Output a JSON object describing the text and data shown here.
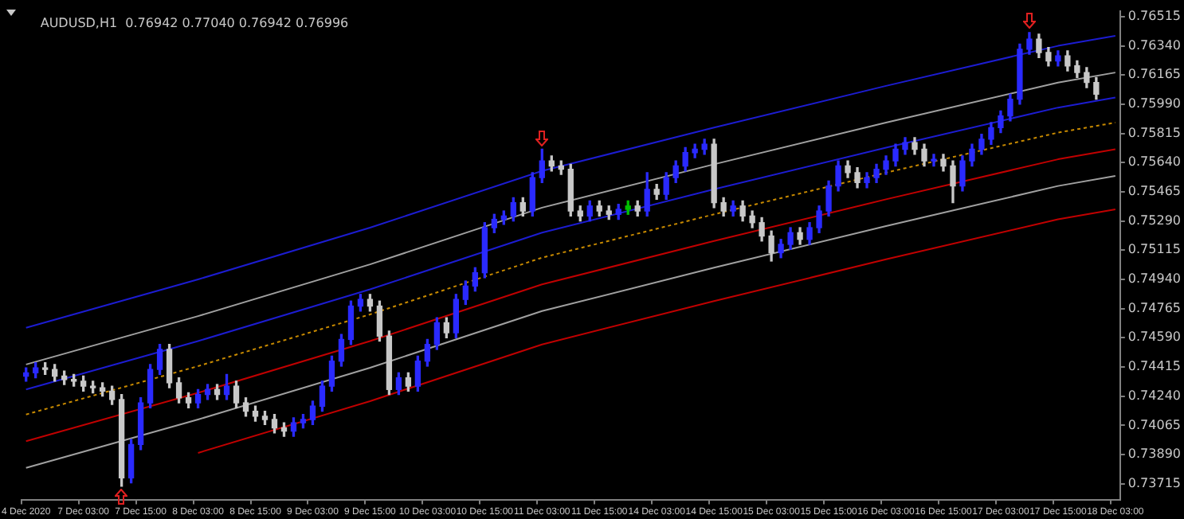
{
  "chart_data": {
    "type": "candlestick",
    "title": "AUDUSD,H1  0.76942 0.77040 0.76942 0.76996",
    "categories": [
      "4 Dec 2020",
      null,
      null,
      null,
      null,
      null,
      "7 Dec 03:00",
      null,
      null,
      null,
      null,
      null,
      "7 Dec 15:00",
      null,
      null,
      null,
      null,
      null,
      "8 Dec 03:00",
      null,
      null,
      null,
      null,
      null,
      "8 Dec 15:00",
      null,
      null,
      null,
      null,
      null,
      "9 Dec 03:00",
      null,
      null,
      null,
      null,
      null,
      "9 Dec 15:00",
      null,
      null,
      null,
      null,
      null,
      "10 Dec 03:00",
      null,
      null,
      null,
      null,
      null,
      "10 Dec 15:00",
      null,
      null,
      null,
      null,
      null,
      "11 Dec 03:00",
      null,
      null,
      null,
      null,
      null,
      "11 Dec 15:00",
      null,
      null,
      null,
      null,
      null,
      "14 Dec 03:00",
      null,
      null,
      null,
      null,
      null,
      "14 Dec 15:00",
      null,
      null,
      null,
      null,
      null,
      "15 Dec 03:00",
      null,
      null,
      null,
      null,
      null,
      "15 Dec 15:00",
      null,
      null,
      null,
      null,
      null,
      "16 Dec 03:00",
      null,
      null,
      null,
      null,
      null,
      "16 Dec 15:00",
      null,
      null,
      null,
      null,
      null,
      "17 Dec 03:00",
      null,
      null,
      null,
      null,
      null,
      "17 Dec 15:00",
      null,
      null,
      null,
      null,
      null,
      "18 Dec 03:00"
    ],
    "ohlc": [
      [
        0.7436,
        0.7441,
        0.7433,
        0.7438
      ],
      [
        0.7438,
        0.7444,
        0.7435,
        0.7441
      ],
      [
        0.7441,
        0.7444,
        0.7437,
        0.744
      ],
      [
        0.744,
        0.7443,
        0.7433,
        0.7436
      ],
      [
        0.7436,
        0.7439,
        0.7431,
        0.7434
      ],
      [
        0.7434,
        0.7437,
        0.743,
        0.7433
      ],
      [
        0.7433,
        0.7436,
        0.7427,
        0.743
      ],
      [
        0.743,
        0.7433,
        0.7426,
        0.7429
      ],
      [
        0.7429,
        0.7432,
        0.7424,
        0.7427
      ],
      [
        0.7427,
        0.743,
        0.7419,
        0.7422
      ],
      [
        0.7422,
        0.7425,
        0.737,
        0.7375
      ],
      [
        0.7375,
        0.7398,
        0.7372,
        0.7395
      ],
      [
        0.7395,
        0.7423,
        0.7392,
        0.742
      ],
      [
        0.742,
        0.7443,
        0.7417,
        0.744
      ],
      [
        0.744,
        0.7455,
        0.7437,
        0.7452
      ],
      [
        0.7452,
        0.7455,
        0.7429,
        0.7432
      ],
      [
        0.7432,
        0.7435,
        0.742,
        0.7423
      ],
      [
        0.7423,
        0.7426,
        0.7417,
        0.742
      ],
      [
        0.742,
        0.7428,
        0.7417,
        0.7425
      ],
      [
        0.7425,
        0.7431,
        0.7422,
        0.7428
      ],
      [
        0.7428,
        0.7431,
        0.7422,
        0.7425
      ],
      [
        0.7425,
        0.7437,
        0.7422,
        0.743
      ],
      [
        0.743,
        0.7433,
        0.7417,
        0.742
      ],
      [
        0.742,
        0.7423,
        0.7412,
        0.7415
      ],
      [
        0.7415,
        0.7418,
        0.7409,
        0.7412
      ],
      [
        0.7412,
        0.7415,
        0.7407,
        0.741
      ],
      [
        0.741,
        0.7413,
        0.7402,
        0.7405
      ],
      [
        0.7405,
        0.7408,
        0.74,
        0.7403
      ],
      [
        0.7403,
        0.7411,
        0.74,
        0.7408
      ],
      [
        0.7408,
        0.7413,
        0.7405,
        0.741
      ],
      [
        0.741,
        0.7421,
        0.7407,
        0.7418
      ],
      [
        0.7418,
        0.7433,
        0.7415,
        0.743
      ],
      [
        0.743,
        0.7448,
        0.7427,
        0.7445
      ],
      [
        0.7445,
        0.7461,
        0.7442,
        0.7458
      ],
      [
        0.7458,
        0.7481,
        0.7455,
        0.7478
      ],
      [
        0.7478,
        0.7485,
        0.7475,
        0.7482
      ],
      [
        0.7482,
        0.7485,
        0.7475,
        0.7478
      ],
      [
        0.7478,
        0.7481,
        0.7457,
        0.746
      ],
      [
        0.746,
        0.7463,
        0.7425,
        0.7428
      ],
      [
        0.7428,
        0.7438,
        0.7425,
        0.7435
      ],
      [
        0.7435,
        0.7438,
        0.7427,
        0.743
      ],
      [
        0.743,
        0.7448,
        0.7427,
        0.7445
      ],
      [
        0.7445,
        0.7458,
        0.7442,
        0.7455
      ],
      [
        0.7455,
        0.7471,
        0.7452,
        0.7468
      ],
      [
        0.7468,
        0.7471,
        0.7459,
        0.7462
      ],
      [
        0.7462,
        0.7485,
        0.7459,
        0.7482
      ],
      [
        0.7482,
        0.7493,
        0.7479,
        0.749
      ],
      [
        0.749,
        0.7501,
        0.7487,
        0.7498
      ],
      [
        0.7498,
        0.7528,
        0.7495,
        0.7525
      ],
      [
        0.7525,
        0.7533,
        0.7522,
        0.753
      ],
      [
        0.753,
        0.7535,
        0.7527,
        0.7532
      ],
      [
        0.7532,
        0.7543,
        0.7529,
        0.754
      ],
      [
        0.754,
        0.7543,
        0.7532,
        0.7535
      ],
      [
        0.7535,
        0.7558,
        0.7532,
        0.7555
      ],
      [
        0.7555,
        0.7572,
        0.7552,
        0.7565
      ],
      [
        0.7565,
        0.7568,
        0.7559,
        0.7562
      ],
      [
        0.7562,
        0.7565,
        0.7557,
        0.756
      ],
      [
        0.756,
        0.7563,
        0.7532,
        0.7535
      ],
      [
        0.7535,
        0.7538,
        0.7529,
        0.7532
      ],
      [
        0.7532,
        0.7541,
        0.7529,
        0.7538
      ],
      [
        0.7538,
        0.7541,
        0.7532,
        0.7535
      ],
      [
        0.7535,
        0.7538,
        0.753,
        0.7533
      ],
      [
        0.7533,
        0.7539,
        0.753,
        0.7536
      ],
      [
        0.7536,
        0.7541,
        0.7533,
        0.7538
      ],
      [
        0.7538,
        0.7541,
        0.7532,
        0.7535
      ],
      [
        0.7535,
        0.7558,
        0.7532,
        0.7548
      ],
      [
        0.7548,
        0.7551,
        0.7542,
        0.7545
      ],
      [
        0.7545,
        0.7558,
        0.7542,
        0.7555
      ],
      [
        0.7555,
        0.7565,
        0.7552,
        0.7562
      ],
      [
        0.7562,
        0.7573,
        0.7559,
        0.757
      ],
      [
        0.757,
        0.7575,
        0.7567,
        0.7572
      ],
      [
        0.7572,
        0.7578,
        0.7569,
        0.7575
      ],
      [
        0.7575,
        0.7578,
        0.7537,
        0.754
      ],
      [
        0.754,
        0.7543,
        0.7532,
        0.7535
      ],
      [
        0.7535,
        0.7541,
        0.7532,
        0.7538
      ],
      [
        0.7538,
        0.7541,
        0.7529,
        0.7532
      ],
      [
        0.7532,
        0.7535,
        0.7525,
        0.7528
      ],
      [
        0.7528,
        0.7531,
        0.7517,
        0.752
      ],
      [
        0.752,
        0.7523,
        0.7505,
        0.751
      ],
      [
        0.751,
        0.7518,
        0.7507,
        0.7515
      ],
      [
        0.7515,
        0.7525,
        0.7512,
        0.7522
      ],
      [
        0.7522,
        0.7525,
        0.7515,
        0.7518
      ],
      [
        0.7518,
        0.7528,
        0.7515,
        0.7525
      ],
      [
        0.7525,
        0.7538,
        0.7522,
        0.7535
      ],
      [
        0.7535,
        0.7553,
        0.7532,
        0.755
      ],
      [
        0.755,
        0.7565,
        0.7547,
        0.7562
      ],
      [
        0.7562,
        0.7565,
        0.7555,
        0.7558
      ],
      [
        0.7558,
        0.7561,
        0.7549,
        0.7552
      ],
      [
        0.7552,
        0.7558,
        0.7549,
        0.7555
      ],
      [
        0.7555,
        0.7563,
        0.7552,
        0.756
      ],
      [
        0.756,
        0.7568,
        0.7557,
        0.7565
      ],
      [
        0.7565,
        0.7575,
        0.7562,
        0.7572
      ],
      [
        0.7572,
        0.7579,
        0.7569,
        0.7576
      ],
      [
        0.7576,
        0.7579,
        0.7569,
        0.7572
      ],
      [
        0.7572,
        0.7575,
        0.7562,
        0.7565
      ],
      [
        0.7565,
        0.7569,
        0.7562,
        0.7566
      ],
      [
        0.7566,
        0.7569,
        0.7559,
        0.7562
      ],
      [
        0.7562,
        0.7565,
        0.754,
        0.755
      ],
      [
        0.755,
        0.7568,
        0.7547,
        0.7565
      ],
      [
        0.7565,
        0.7575,
        0.7562,
        0.7572
      ],
      [
        0.7572,
        0.7581,
        0.7569,
        0.7578
      ],
      [
        0.7578,
        0.7588,
        0.7575,
        0.7585
      ],
      [
        0.7585,
        0.7595,
        0.7582,
        0.7592
      ],
      [
        0.7592,
        0.7605,
        0.7589,
        0.7602
      ],
      [
        0.7602,
        0.7635,
        0.7599,
        0.7632
      ],
      [
        0.7632,
        0.7642,
        0.7629,
        0.7638
      ],
      [
        0.7638,
        0.7641,
        0.7627,
        0.763
      ],
      [
        0.763,
        0.7633,
        0.7622,
        0.7625
      ],
      [
        0.7625,
        0.7631,
        0.7622,
        0.7628
      ],
      [
        0.7628,
        0.7631,
        0.7619,
        0.7622
      ],
      [
        0.7622,
        0.7625,
        0.7615,
        0.7618
      ],
      [
        0.7618,
        0.7621,
        0.7609,
        0.7612
      ],
      [
        0.7612,
        0.7615,
        0.7602,
        0.7605
      ],
      null,
      null
    ],
    "colors": [
      "#2a2aff",
      "#2a2aff",
      "#c8c8c8",
      "#c8c8c8",
      "#c8c8c8",
      "#c8c8c8",
      "#c8c8c8",
      "#c8c8c8",
      "#c8c8c8",
      "#c8c8c8",
      "#c8c8c8",
      "#2a2aff",
      "#2a2aff",
      "#2a2aff",
      "#2a2aff",
      "#c8c8c8",
      "#c8c8c8",
      "#c8c8c8",
      "#2a2aff",
      "#2a2aff",
      "#c8c8c8",
      "#2a2aff",
      "#c8c8c8",
      "#c8c8c8",
      "#c8c8c8",
      "#c8c8c8",
      "#c8c8c8",
      "#c8c8c8",
      "#2a2aff",
      "#2a2aff",
      "#2a2aff",
      "#2a2aff",
      "#2a2aff",
      "#2a2aff",
      "#2a2aff",
      "#2a2aff",
      "#c8c8c8",
      "#c8c8c8",
      "#c8c8c8",
      "#2a2aff",
      "#c8c8c8",
      "#2a2aff",
      "#2a2aff",
      "#2a2aff",
      "#c8c8c8",
      "#2a2aff",
      "#2a2aff",
      "#2a2aff",
      "#2a2aff",
      "#2a2aff",
      "#2a2aff",
      "#2a2aff",
      "#c8c8c8",
      "#2a2aff",
      "#2a2aff",
      "#c8c8c8",
      "#c8c8c8",
      "#c8c8c8",
      "#c8c8c8",
      "#2a2aff",
      "#c8c8c8",
      "#c8c8c8",
      "#2a2aff",
      "#00c000",
      "#c8c8c8",
      "#2a2aff",
      "#c8c8c8",
      "#2a2aff",
      "#2a2aff",
      "#2a2aff",
      "#2a2aff",
      "#2a2aff",
      "#c8c8c8",
      "#c8c8c8",
      "#2a2aff",
      "#c8c8c8",
      "#c8c8c8",
      "#c8c8c8",
      "#c8c8c8",
      "#2a2aff",
      "#2a2aff",
      "#c8c8c8",
      "#2a2aff",
      "#2a2aff",
      "#2a2aff",
      "#2a2aff",
      "#c8c8c8",
      "#c8c8c8",
      "#2a2aff",
      "#2a2aff",
      "#2a2aff",
      "#2a2aff",
      "#2a2aff",
      "#c8c8c8",
      "#c8c8c8",
      "#2a2aff",
      "#c8c8c8",
      "#c8c8c8",
      "#2a2aff",
      "#2a2aff",
      "#2a2aff",
      "#2a2aff",
      "#2a2aff",
      "#2a2aff",
      "#2a2aff",
      "#2a2aff",
      "#c8c8c8",
      "#c8c8c8",
      "#2a2aff",
      "#c8c8c8",
      "#c8c8c8",
      "#c8c8c8",
      "#c8c8c8",
      null,
      null
    ],
    "series": [
      {
        "type": "line",
        "color": "#1c1cd0",
        "x": [
          "4 Dec 2020",
          "8 Dec 03:00",
          "9 Dec 15:00",
          "11 Dec 03:00",
          "14 Dec 15:00",
          "16 Dec 03:00",
          "17 Dec 15:00",
          "18 Dec 03:00"
        ],
        "values": [
          0.7465,
          0.7494,
          0.7525,
          0.7559,
          0.7585,
          0.761,
          0.7634,
          0.764
        ]
      },
      {
        "type": "line",
        "color": "#a0a0a0",
        "x": [
          "4 Dec 2020",
          "8 Dec 03:00",
          "9 Dec 15:00",
          "11 Dec 03:00",
          "14 Dec 15:00",
          "16 Dec 03:00",
          "17 Dec 15:00",
          "18 Dec 03:00"
        ],
        "values": [
          0.7443,
          0.7472,
          0.7503,
          0.7537,
          0.7563,
          0.7588,
          0.7612,
          0.7618
        ]
      },
      {
        "type": "line",
        "color": "#1c1cd0",
        "x": [
          "4 Dec 2020",
          "8 Dec 03:00",
          "9 Dec 15:00",
          "11 Dec 03:00",
          "14 Dec 15:00",
          "16 Dec 03:00",
          "17 Dec 15:00",
          "18 Dec 03:00"
        ],
        "values": [
          0.7428,
          0.7457,
          0.7488,
          0.7522,
          0.7548,
          0.7573,
          0.7597,
          0.7603
        ]
      },
      {
        "type": "line",
        "color": "#c88a00",
        "line_style": "dotted",
        "x": [
          "4 Dec 2020",
          "8 Dec 03:00",
          "9 Dec 15:00",
          "11 Dec 03:00",
          "14 Dec 15:00",
          "16 Dec 03:00",
          "17 Dec 15:00",
          "18 Dec 03:00"
        ],
        "values": [
          0.7413,
          0.7442,
          0.7473,
          0.7507,
          0.7533,
          0.7558,
          0.7582,
          0.7588
        ]
      },
      {
        "type": "line",
        "color": "#c00000",
        "x": [
          "4 Dec 2020",
          "8 Dec 03:00",
          "9 Dec 15:00",
          "11 Dec 03:00",
          "14 Dec 15:00",
          "16 Dec 03:00",
          "17 Dec 15:00",
          "18 Dec 03:00"
        ],
        "values": [
          0.7397,
          0.7426,
          0.7457,
          0.7491,
          0.7517,
          0.7542,
          0.7566,
          0.7572
        ]
      },
      {
        "type": "line",
        "color": "#a0a0a0",
        "x": [
          "4 Dec 2020",
          "8 Dec 03:00",
          "9 Dec 15:00",
          "11 Dec 03:00",
          "14 Dec 15:00",
          "16 Dec 03:00",
          "17 Dec 15:00",
          "18 Dec 03:00"
        ],
        "values": [
          0.7381,
          0.741,
          0.7441,
          0.7475,
          0.7501,
          0.7526,
          0.755,
          0.7556
        ]
      },
      {
        "type": "line",
        "color": "#c00000",
        "x": [
          "8 Dec 03:00",
          "9 Dec 15:00",
          "11 Dec 03:00",
          "14 Dec 15:00",
          "16 Dec 03:00",
          "17 Dec 15:00",
          "18 Dec 03:00"
        ],
        "values": [
          0.739,
          0.7421,
          0.7455,
          0.7481,
          0.7506,
          0.753,
          0.7536
        ]
      }
    ],
    "ylim": [
      0.7362,
      0.7655
    ],
    "yticks": [
      0.76515,
      {
        "value": 0.7634,
        "label": "0.76340"
      },
      0.76165,
      {
        "value": 0.7599,
        "label": "0.75990"
      },
      0.75815,
      {
        "value": 0.7564,
        "label": "0.75640"
      },
      0.75465,
      {
        "value": 0.7529,
        "label": "0.75290"
      },
      0.75115,
      {
        "value": 0.7494,
        "label": "0.74940"
      },
      0.74765,
      {
        "value": 0.7459,
        "label": "0.74590"
      },
      0.74415,
      {
        "value": 0.7424,
        "label": "0.74240"
      },
      0.74065,
      {
        "value": 0.7389,
        "label": "0.73890"
      },
      0.73715
    ]
  }
}
